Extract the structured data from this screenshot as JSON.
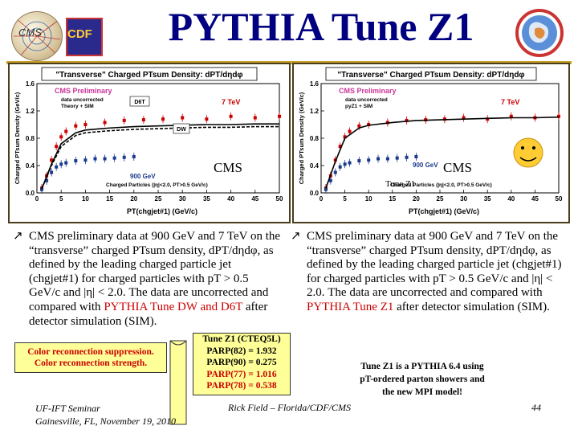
{
  "slide": {
    "title": "PYTHIA Tune Z1",
    "logos": {
      "left_1": "CMS",
      "left_2": "CDF",
      "right": "UF logo"
    }
  },
  "plots": {
    "left": {
      "title": "\"Transverse\" Charged PTsum Density: dPT/dηdφ",
      "legend_main": "CMS Preliminary",
      "legend_sub1": "data uncorrected",
      "legend_sub2": "Theory + SIM",
      "label_7tev": "7 TeV",
      "label_900gev": "900 GeV",
      "label_d6t": "D6T",
      "label_dw": "DW",
      "xlabel": "PT(chgjet#1) (GeV/c)",
      "ylabel": "Charged PTsum Density (GeV/c)",
      "inner_caption": "Charged Particles (|η|<2.0, PT>0.5 GeV/c)",
      "overlay_label": "CMS"
    },
    "right": {
      "title": "\"Transverse\" Charged PTsum Density: dPT/dηdφ",
      "legend_main": "CMS Preliminary",
      "legend_sub1": "data uncorrected",
      "legend_sub2": "pyZ1 + SIM",
      "label_7tev": "7 TeV",
      "label_900gev": "900 GeV",
      "xlabel": "PT(chgjet#1) (GeV/c)",
      "ylabel": "Charged PTsum Density (GeV/c)",
      "inner_caption": "Charged Particles (|η|<2.0, PT>0.5 GeV/c)",
      "overlay_label": "CMS",
      "tune_label": "Tune Z1"
    },
    "x_ticks": [
      "0",
      "5",
      "10",
      "15",
      "20",
      "25",
      "30",
      "35",
      "40",
      "45",
      "50"
    ],
    "y_ticks": [
      "0.0",
      "0.4",
      "0.8",
      "1.2",
      "1.6"
    ]
  },
  "chart_data": [
    {
      "type": "line",
      "title": "\"Transverse\" Charged PTsum Density: dPT/dηdφ",
      "xlabel": "PT(chgjet#1) (GeV/c)",
      "ylabel": "Charged PTsum Density (GeV/c)",
      "xlim": [
        0,
        50
      ],
      "ylim": [
        0,
        1.6
      ],
      "series": [
        {
          "name": "7 TeV",
          "x": [
            1,
            2,
            3,
            4,
            5,
            6,
            8,
            10,
            14,
            18,
            22,
            26,
            30,
            35,
            40,
            45,
            50
          ],
          "values": [
            0.07,
            0.25,
            0.48,
            0.68,
            0.82,
            0.9,
            0.98,
            1.0,
            1.03,
            1.06,
            1.07,
            1.08,
            1.1,
            1.08,
            1.12,
            1.1,
            1.12
          ]
        },
        {
          "name": "900 GeV",
          "x": [
            1,
            2,
            3,
            4,
            5,
            6,
            8,
            10,
            12,
            14,
            16,
            18,
            20
          ],
          "values": [
            0.05,
            0.18,
            0.3,
            0.38,
            0.42,
            0.44,
            0.47,
            0.48,
            0.5,
            0.5,
            0.51,
            0.52,
            0.53
          ]
        },
        {
          "name": "D6T",
          "x": [
            1,
            3,
            5,
            8,
            10,
            15,
            20,
            25,
            30,
            35,
            40,
            45,
            50
          ],
          "values": [
            0.06,
            0.42,
            0.72,
            0.88,
            0.92,
            0.95,
            0.97,
            0.98,
            0.99,
            1.0,
            1.0,
            1.01,
            1.01
          ]
        },
        {
          "name": "DW",
          "x": [
            1,
            3,
            5,
            8,
            10,
            15,
            20,
            25,
            30,
            35,
            40,
            45,
            50
          ],
          "values": [
            0.06,
            0.4,
            0.68,
            0.84,
            0.88,
            0.91,
            0.93,
            0.94,
            0.95,
            0.96,
            0.96,
            0.97,
            0.97
          ]
        }
      ]
    },
    {
      "type": "line",
      "title": "\"Transverse\" Charged PTsum Density: dPT/dηdφ",
      "xlabel": "PT(chgjet#1) (GeV/c)",
      "ylabel": "Charged PTsum Density (GeV/c)",
      "xlim": [
        0,
        50
      ],
      "ylim": [
        0,
        1.6
      ],
      "series": [
        {
          "name": "7 TeV",
          "x": [
            1,
            2,
            3,
            4,
            5,
            6,
            8,
            10,
            14,
            18,
            22,
            26,
            30,
            35,
            40,
            45,
            50
          ],
          "values": [
            0.07,
            0.25,
            0.48,
            0.68,
            0.82,
            0.9,
            0.98,
            1.0,
            1.03,
            1.06,
            1.07,
            1.08,
            1.1,
            1.08,
            1.12,
            1.1,
            1.12
          ]
        },
        {
          "name": "900 GeV",
          "x": [
            1,
            2,
            3,
            4,
            5,
            6,
            8,
            10,
            12,
            14,
            16,
            18,
            20
          ],
          "values": [
            0.05,
            0.18,
            0.3,
            0.38,
            0.42,
            0.44,
            0.47,
            0.48,
            0.5,
            0.5,
            0.51,
            0.52,
            0.53
          ]
        },
        {
          "name": "Tune Z1",
          "x": [
            1,
            3,
            5,
            8,
            10,
            15,
            20,
            25,
            30,
            35,
            40,
            45,
            50
          ],
          "values": [
            0.07,
            0.46,
            0.8,
            0.95,
            0.99,
            1.03,
            1.06,
            1.07,
            1.08,
            1.09,
            1.1,
            1.1,
            1.11
          ]
        }
      ]
    }
  ],
  "bullets": {
    "left": {
      "pre": "CMS preliminary data at 900 GeV and 7 TeV on the “transverse” charged PTsum density, dPT/dηdφ, as defined by the leading charged particle jet (chgjet#1) for charged particles with pT > 0.5 GeV/c and |η| < 2.0.  The data are uncorrected and compared with ",
      "highlight": "PYTHIA Tune DW and D6T",
      "post": " after detector simulation (SIM)."
    },
    "right": {
      "pre": "CMS preliminary data at 900 GeV and 7 TeV on the “transverse” charged PTsum density, dPT/dηdφ, as defined by the leading charged particle jet (chgjet#1) for charged particles with pT > 0.5 GeV/c and |η| < 2.0.  The data are uncorrected and compared with ",
      "highlight": "PYTHIA Tune Z1",
      "post": " after detector simulation (SIM)."
    }
  },
  "note": {
    "line1": "Color reconnection suppression.",
    "line2": "Color reconnection strength."
  },
  "params": {
    "title": "Tune Z1 (CTEQ5L)",
    "p1": "PARP(82) = 1.932",
    "p2": "PARP(90) = 0.275",
    "p3": "PARP(77) = 1.016",
    "p4": "PARP(78) = 0.538"
  },
  "pythia_note": {
    "line1": "Tune Z1 is a PYTHIA 6.4 using",
    "line2": "pT-ordered parton showers and",
    "line3": "the new MPI model!"
  },
  "footer": {
    "left_1": "UF-IFT Seminar",
    "left_2": "Gainesville, FL,  November 19, 2010",
    "center": "Rick Field – Florida/CDF/CMS",
    "page": "44"
  },
  "colors": {
    "title": "#000080",
    "highlight": "#cc0000",
    "data_900": "#1a3a8c",
    "data_7tev": "#cc0000",
    "panel_border": "#4a3c1c",
    "yellow": "#ffff99"
  }
}
